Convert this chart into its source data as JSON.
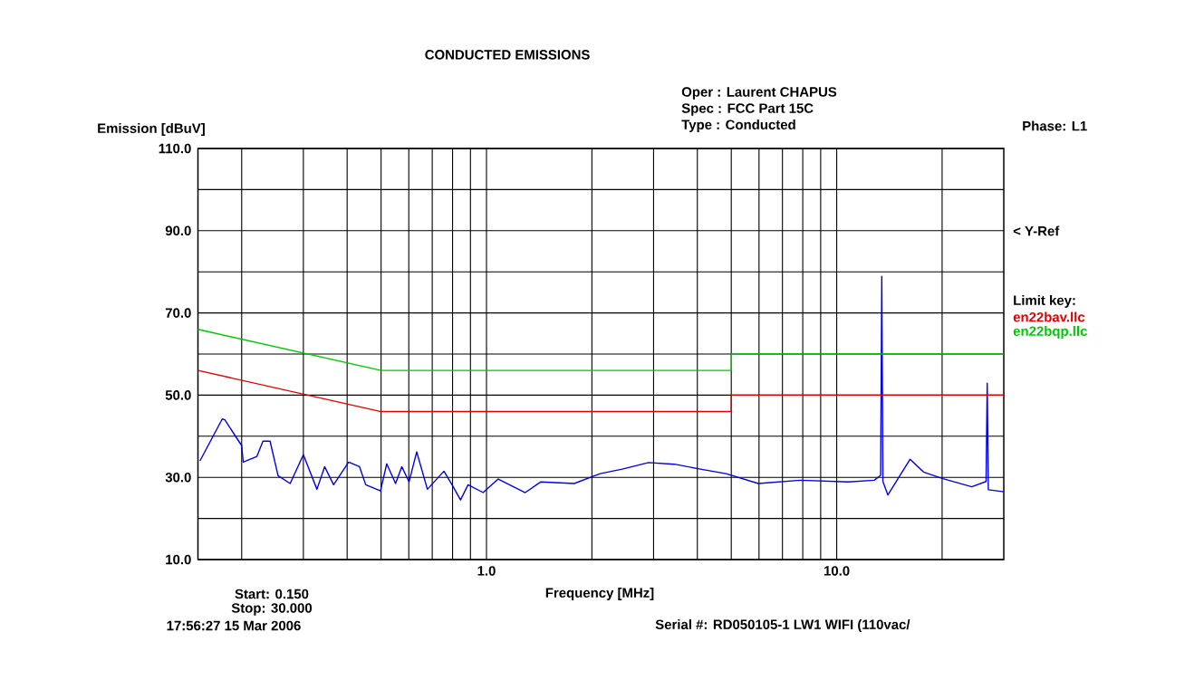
{
  "chart_data": {
    "type": "line",
    "title": "CONDUCTED EMISSIONS",
    "xlabel": "Frequency [MHz]",
    "ylabel": "Emission [dBuV]",
    "legend_title": "Limit key:",
    "legend": "right",
    "grid": true,
    "log": "x",
    "xlim": [
      0.15,
      30
    ],
    "ylim": [
      10,
      110
    ],
    "xticks": [
      {
        "value": 0.2,
        "label": null
      },
      {
        "value": 0.3,
        "label": null
      },
      {
        "value": 0.4,
        "label": null
      },
      {
        "value": 0.5,
        "label": null
      },
      {
        "value": 0.6,
        "label": null
      },
      {
        "value": 0.7,
        "label": null
      },
      {
        "value": 0.8,
        "label": null
      },
      {
        "value": 0.9,
        "label": null
      },
      {
        "value": 1,
        "label": "1.0"
      },
      {
        "value": 2,
        "label": null
      },
      {
        "value": 3,
        "label": null
      },
      {
        "value": 4,
        "label": null
      },
      {
        "value": 5,
        "label": null
      },
      {
        "value": 6,
        "label": null
      },
      {
        "value": 7,
        "label": null
      },
      {
        "value": 8,
        "label": null
      },
      {
        "value": 9,
        "label": null
      },
      {
        "value": 10,
        "label": "10.0"
      },
      {
        "value": 20,
        "label": null
      }
    ],
    "yticks": [
      {
        "value": 10,
        "label": "10.0"
      },
      {
        "value": 20,
        "label": null
      },
      {
        "value": 30,
        "label": "30.0"
      },
      {
        "value": 40,
        "label": null
      },
      {
        "value": 50,
        "label": "50.0"
      },
      {
        "value": 60,
        "label": null
      },
      {
        "value": 70,
        "label": "70.0"
      },
      {
        "value": 80,
        "label": null
      },
      {
        "value": 90,
        "label": "90.0"
      },
      {
        "value": 100,
        "label": null
      },
      {
        "value": 110,
        "label": "110.0"
      }
    ],
    "annotations": [
      "< Y-Ref",
      "Oper : Laurent CHAPUS",
      "Spec : FCC Part 15C",
      "Type : Conducted",
      "Phase: L1",
      "Start: 0.150",
      "Stop: 30.000",
      "17:56:27 15 Mar 2006",
      "Serial #: RD050105-1 LW1 WIFI (110vac/"
    ],
    "series": [
      {
        "color": "#0000e0",
        "x": [
          0.152,
          0.176,
          0.179,
          0.2,
          0.202,
          0.221,
          0.23,
          0.241,
          0.254,
          0.275,
          0.3,
          0.328,
          0.345,
          0.366,
          0.404,
          0.434,
          0.452,
          0.498,
          0.519,
          0.55,
          0.573,
          0.601,
          0.632,
          0.678,
          0.756,
          0.802,
          0.843,
          0.886,
          0.978,
          1.08,
          1.29,
          1.43,
          1.78,
          2.11,
          2.44,
          2.9,
          3.44,
          4.08,
          4.83,
          5.97,
          7.88,
          10.8,
          12.8,
          13.35,
          13.45,
          13.55,
          14.0,
          16.2,
          17.7,
          20.1,
          24.3,
          26.7,
          26.9,
          27.1,
          30
        ],
        "values": [
          34,
          44.2,
          44,
          37.7,
          33.7,
          35.1,
          38.8,
          38.8,
          30.4,
          28.5,
          35.5,
          27.1,
          32.6,
          28.2,
          33.7,
          32.6,
          28.2,
          26.7,
          33.3,
          28.5,
          32.6,
          28.9,
          36.2,
          27.1,
          31.5,
          27.8,
          24.5,
          28.2,
          26.3,
          29.6,
          26.3,
          28.9,
          28.5,
          30.9,
          32,
          33.6,
          33.2,
          32,
          30.9,
          28.5,
          29.3,
          28.9,
          29.3,
          30.5,
          78.9,
          29,
          25.7,
          34.4,
          31.3,
          29.7,
          27.7,
          29,
          52.9,
          27,
          26.5
        ]
      },
      {
        "name": "en22bav.llc",
        "color": "#e00000",
        "x": [
          0.15,
          0.5,
          5,
          5,
          30
        ],
        "values": [
          56,
          46,
          46,
          50,
          50
        ]
      },
      {
        "name": "en22bqp.llc",
        "color": "#00c800",
        "x": [
          0.15,
          0.5,
          5,
          5,
          30
        ],
        "values": [
          66,
          56,
          56,
          60,
          60
        ]
      }
    ]
  }
}
